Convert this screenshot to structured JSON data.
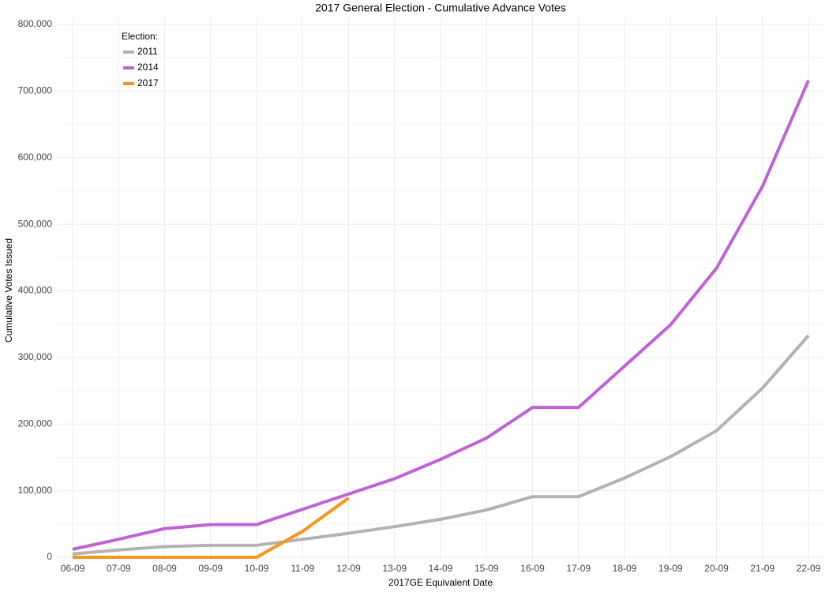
{
  "chart_data": {
    "type": "line",
    "title": "2017 General Election - Cumulative Advance Votes",
    "x_label": "2017GE Equivalent Date",
    "y_label": "Cumulative Votes Issued",
    "legend_title": "Election:",
    "legend_position": "top-left",
    "grid": true,
    "categories": [
      "06-09",
      "07-09",
      "08-09",
      "09-09",
      "10-09",
      "11-09",
      "12-09",
      "13-09",
      "14-09",
      "15-09",
      "16-09",
      "17-09",
      "18-09",
      "19-09",
      "20-09",
      "21-09",
      "22-09"
    ],
    "ylim": [
      0,
      800000
    ],
    "yticks": [
      0,
      {
        "value": 100000,
        "label": "100,000"
      },
      {
        "value": 200000,
        "label": "200,000"
      },
      {
        "value": 300000,
        "label": "300,000"
      },
      {
        "value": 400000,
        "label": "400,000"
      },
      {
        "value": 500000,
        "label": "500,000"
      },
      {
        "value": 600000,
        "label": "600,000"
      },
      {
        "value": 700000,
        "label": "700,000"
      },
      {
        "value": 800000,
        "label": "800,000"
      }
    ],
    "series": [
      {
        "name": "2011",
        "color": "#b3b3b3",
        "values": [
          5000,
          11000,
          16000,
          18000,
          18000,
          27000,
          36000,
          46000,
          57000,
          71000,
          91000,
          91000,
          119000,
          151000,
          190000,
          254000,
          333000
        ]
      },
      {
        "name": "2014",
        "color": "#bf63d6",
        "values": [
          12000,
          27000,
          43000,
          49000,
          49000,
          72000,
          95000,
          118000,
          147000,
          179000,
          225000,
          225000,
          287000,
          349000,
          434000,
          557000,
          716000
        ]
      },
      {
        "name": "2017",
        "color": "#f7951d",
        "values": [
          0,
          0,
          0,
          0,
          0,
          39000,
          89000,
          null,
          null,
          null,
          null,
          null,
          null,
          null,
          null,
          null,
          null
        ]
      }
    ]
  }
}
